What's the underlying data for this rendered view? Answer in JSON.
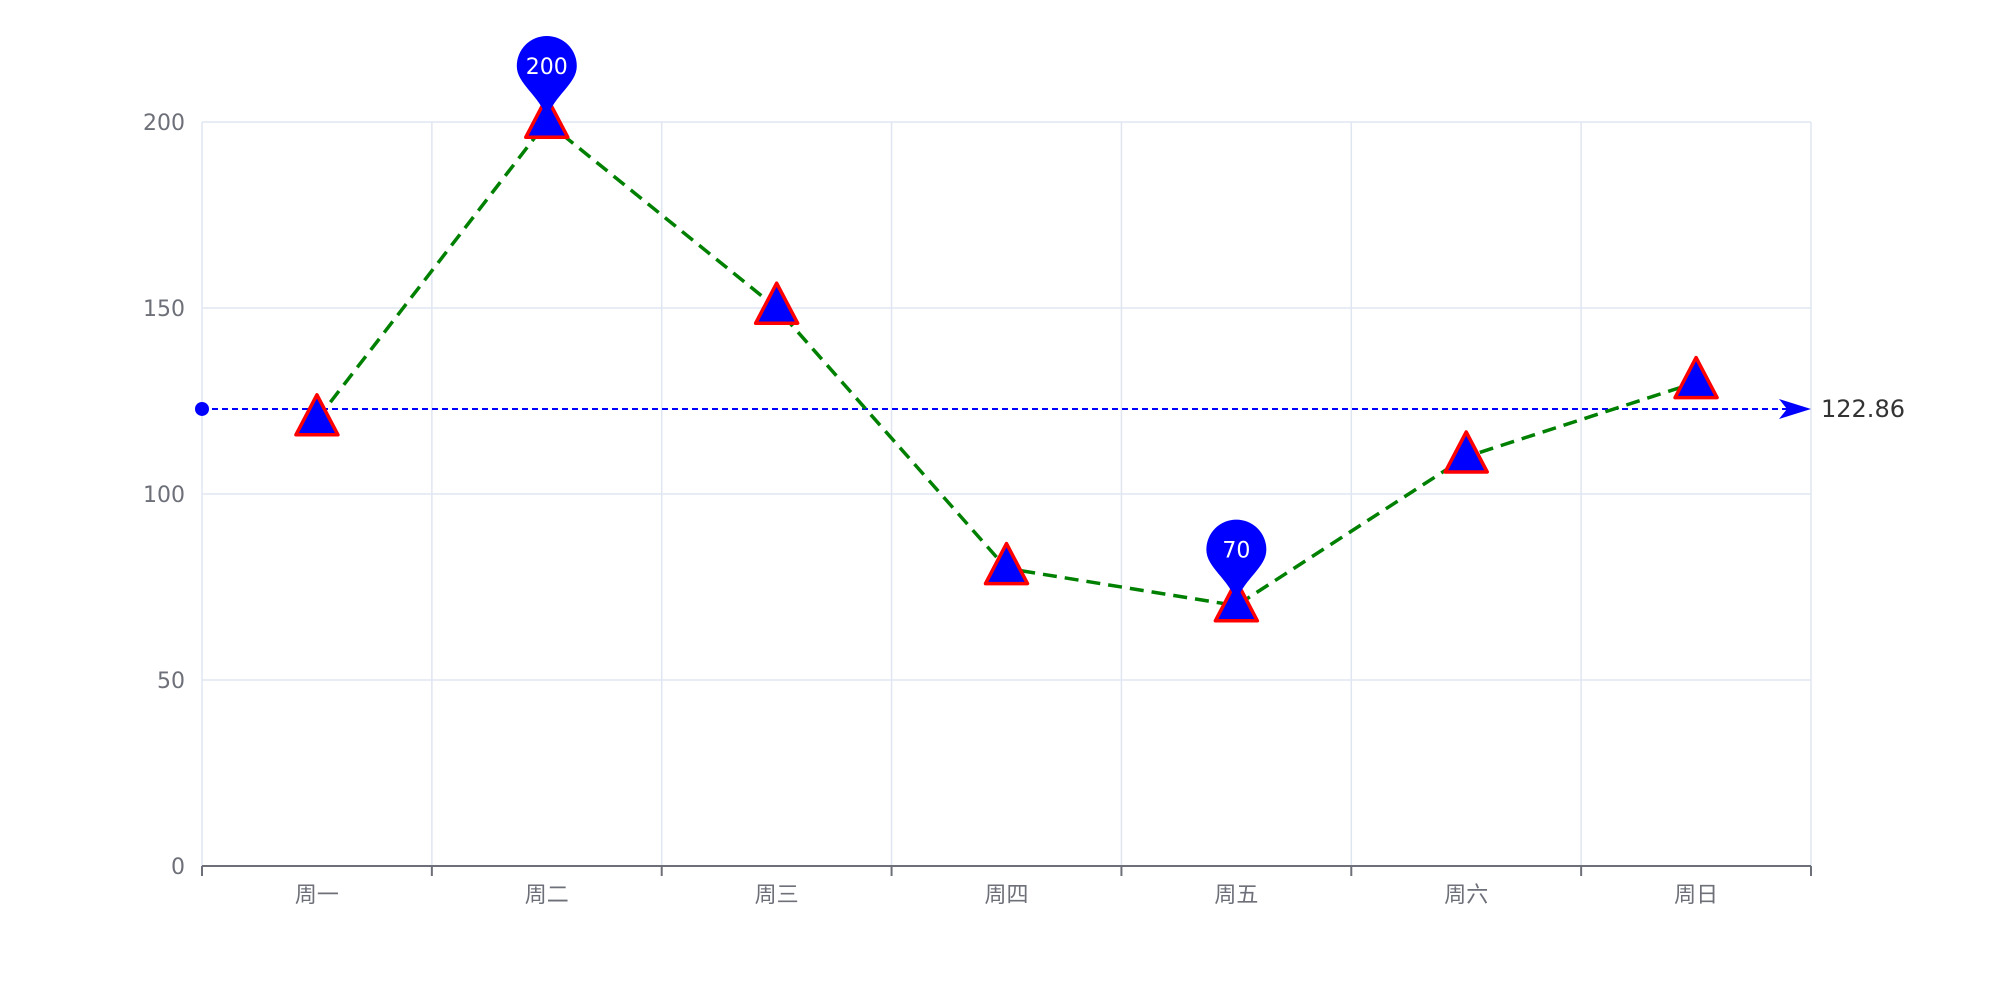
{
  "chart_data": {
    "type": "line",
    "categories": [
      "周一",
      "周二",
      "周三",
      "周四",
      "周五",
      "周六",
      "周日"
    ],
    "series": [
      {
        "values": [
          120,
          200,
          150,
          80,
          70,
          110,
          130
        ],
        "line_color": "#008000",
        "line_style": "dashed",
        "marker": "triangle",
        "marker_fill": "#0000ff",
        "marker_stroke": "#ff0000"
      }
    ],
    "ylim": [
      0,
      200
    ],
    "y_ticks": [
      0,
      50,
      100,
      150,
      200
    ],
    "grid": true,
    "mark_points": [
      {
        "kind": "max",
        "category": "周二",
        "value": 200,
        "label": "200"
      },
      {
        "kind": "min",
        "category": "周五",
        "value": 70,
        "label": "70"
      }
    ],
    "mark_line": {
      "kind": "average",
      "value": 122.86,
      "label": "122.86",
      "color": "#0000ff"
    },
    "colors": {
      "grid": "#e0e6f1",
      "axis": "#6e7079",
      "tick_label": "#6e7079",
      "mark_label": "#333333",
      "pin_fill": "#0000ff",
      "pin_text": "#ffffff"
    }
  }
}
